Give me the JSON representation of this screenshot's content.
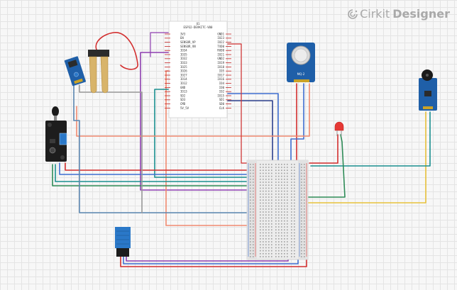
{
  "brand": {
    "name": "Cirkit",
    "suffix": "Designer",
    "icon": "cirkit-logo-icon"
  },
  "esp32": {
    "ref": "U1",
    "part": "ESP32-DEVKITC-V00",
    "left_pins": [
      "3V3",
      "EN",
      "SENSOR_VP",
      "SENSOR_VN",
      "IO34",
      "IO35",
      "IO32",
      "IO33",
      "IO25",
      "IO26",
      "IO27",
      "IO14",
      "IO12",
      "GND",
      "IO13",
      "SD2",
      "SD3",
      "CMD",
      "5V_5V"
    ],
    "right_pins": [
      "GND1",
      "IO23",
      "IO22",
      "TXD0",
      "RXD0",
      "IO21",
      "GND2",
      "IO19",
      "IO18",
      "IO5",
      "IO17",
      "IO16",
      "IO4",
      "IO0",
      "IO2",
      "IO15",
      "SD1",
      "SD0",
      "CLK"
    ]
  },
  "gas_sensor": {
    "label": "MQ-2"
  },
  "colors": {
    "red": "#e53935",
    "blue": "#3f6fd1",
    "purple": "#8e3fb0",
    "green": "#2e8b57",
    "teal": "#1a8f8f",
    "yellow": "#e8c23b",
    "salmon": "#f08a70",
    "gray": "#9a9a9a",
    "steel": "#5a86b0",
    "pink": "#e06ab0"
  }
}
